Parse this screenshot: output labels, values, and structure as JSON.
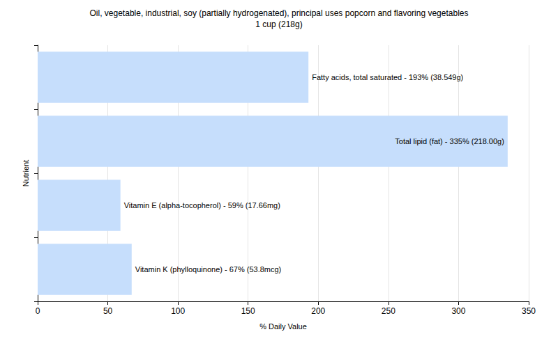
{
  "chart_data": {
    "type": "bar",
    "title": "Oil, vegetable, industrial, soy (partially hydrogenated), principal uses popcorn and flavoring vegetables",
    "subtitle": "1 cup (218g)",
    "orientation": "horizontal",
    "x_label": "% Daily Value",
    "y_label": "Nutrient",
    "categories": [
      "Fatty acids, total saturated",
      "Total lipid (fat)",
      "Vitamin E (alpha-tocopherol)",
      "Vitamin K (phylloquinone)"
    ],
    "values": [
      193,
      335,
      59,
      67
    ],
    "value_labels": [
      "Fatty acids, total saturated - 193% (38.549g)",
      "Total lipid (fat) - 335% (218.00g)",
      "Vitamin E (alpha-tocopherol) - 59% (17.66mg)",
      "Vitamin K (phylloquinone) - 67% (53.8mcg)"
    ],
    "data_labels": true,
    "color": "#c6defc",
    "xlim": [
      0,
      350
    ],
    "xticks": [
      0,
      50,
      100,
      150,
      200,
      250,
      300,
      350
    ],
    "grid": true,
    "tick_labels": "x"
  }
}
